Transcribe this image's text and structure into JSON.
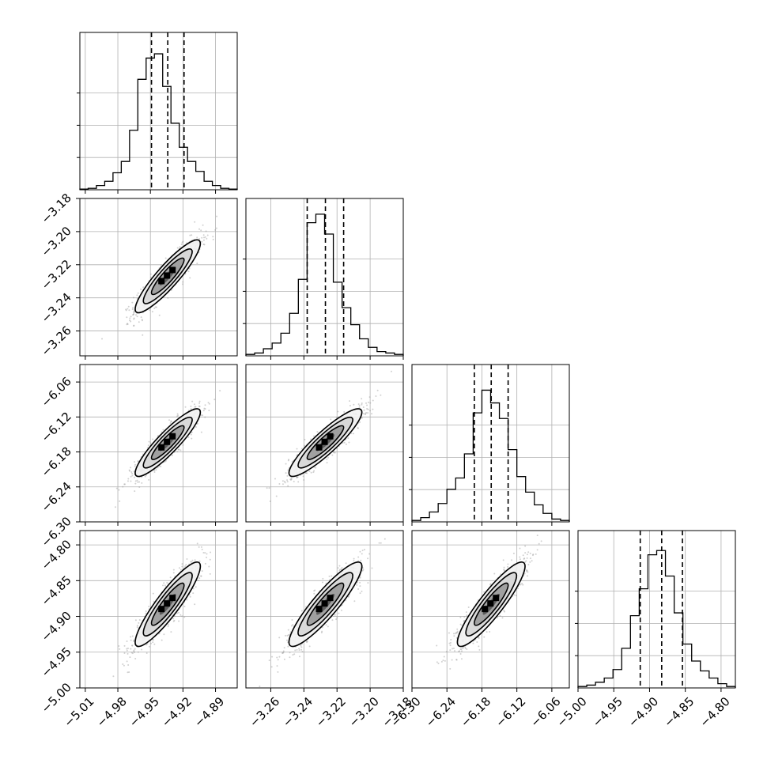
{
  "chart_data": {
    "type": "corner",
    "title": "",
    "grid": true,
    "colors": {
      "ink": "#000000",
      "grid": "#b0b0b0",
      "scatter": "#9a9a9a"
    },
    "quantile_levels": [
      0.16,
      0.5,
      0.84
    ],
    "parameters": [
      {
        "index": 0,
        "range": [
          -5.015,
          -4.87
        ],
        "ticks": [
          "-5.01",
          "-4.98",
          "-4.95",
          "-4.92",
          "-4.89"
        ],
        "quantiles": [
          -4.949,
          -4.934,
          -4.919
        ],
        "hist": [
          0.005,
          0.01,
          0.03,
          0.06,
          0.12,
          0.2,
          0.42,
          0.78,
          0.93,
          0.96,
          0.73,
          0.47,
          0.3,
          0.2,
          0.13,
          0.06,
          0.03,
          0.01,
          0.005
        ]
      },
      {
        "index": 1,
        "range": [
          -3.275,
          -3.18
        ],
        "ticks": [
          "-3.26",
          "-3.24",
          "-3.22",
          "-3.20",
          "-3.18"
        ],
        "quantiles": [
          -3.238,
          -3.227,
          -3.216
        ],
        "hist": [
          0.01,
          0.02,
          0.05,
          0.09,
          0.16,
          0.3,
          0.54,
          0.94,
          1.0,
          0.86,
          0.52,
          0.34,
          0.22,
          0.12,
          0.06,
          0.03,
          0.02,
          0.01
        ]
      },
      {
        "index": 2,
        "range": [
          -6.3,
          -6.03
        ],
        "ticks": [
          "-6.30",
          "-6.24",
          "-6.18",
          "-6.12",
          "-6.06"
        ],
        "quantiles": [
          -6.193,
          -6.164,
          -6.135
        ],
        "hist": [
          0.01,
          0.03,
          0.07,
          0.13,
          0.23,
          0.31,
          0.48,
          0.77,
          0.93,
          0.84,
          0.73,
          0.51,
          0.32,
          0.21,
          0.12,
          0.06,
          0.02,
          0.01
        ]
      },
      {
        "index": 3,
        "range": [
          -5.0,
          -4.78
        ],
        "ticks": [
          "-5.00",
          "-4.95",
          "-4.90",
          "-4.85",
          "-4.80"
        ],
        "quantiles": [
          -4.913,
          -4.883,
          -4.854
        ],
        "hist": [
          0.01,
          0.02,
          0.04,
          0.07,
          0.13,
          0.28,
          0.51,
          0.7,
          0.94,
          0.97,
          0.79,
          0.53,
          0.31,
          0.19,
          0.12,
          0.07,
          0.03,
          0.01
        ]
      }
    ],
    "row_tick_labels": [
      [
        "-3.18",
        "-3.20",
        "-3.22",
        "-3.24",
        "-3.26"
      ],
      [
        "-6.06",
        "-6.12",
        "-6.18",
        "-6.24",
        "-6.30"
      ],
      [
        "-4.80",
        "-4.85",
        "-4.90",
        "-4.95",
        "-5.00"
      ]
    ],
    "column_tick_labels": [
      [
        "-5.01",
        "-4.98",
        "-4.95",
        "-4.92",
        "-4.89"
      ],
      [
        "-3.26",
        "-3.24",
        "-3.22",
        "-3.20",
        "-3.18"
      ],
      [
        "-6.30",
        "-6.24",
        "-6.18",
        "-6.12",
        "-6.06"
      ],
      [
        "-5.00",
        "-4.95",
        "-4.90",
        "-4.85",
        "-4.80"
      ]
    ],
    "correlation": 0.9,
    "contour_levels_sigma": [
      0.5,
      1.0,
      1.5,
      2.0
    ]
  }
}
